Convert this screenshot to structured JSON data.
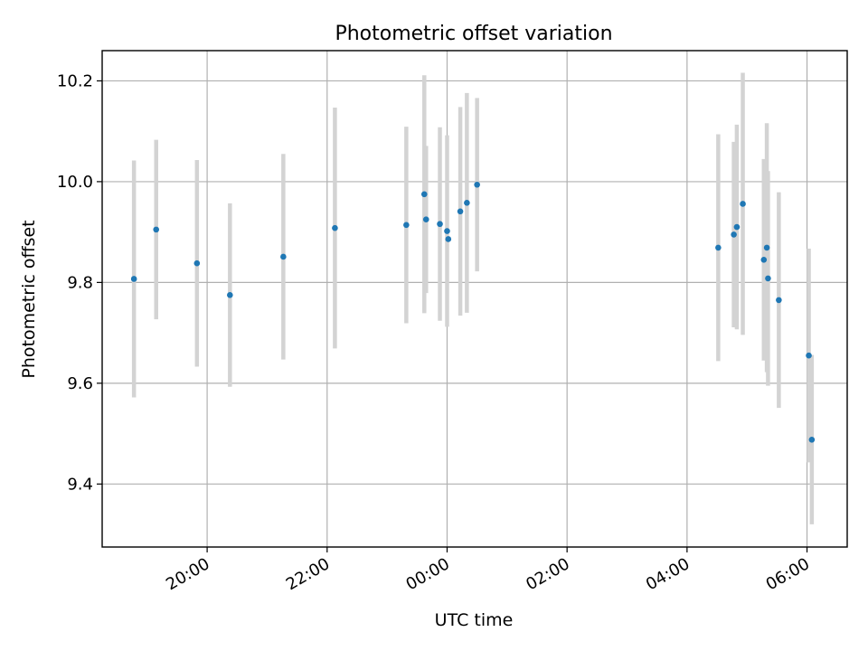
{
  "chart_data": {
    "type": "scatter",
    "title": "Photometric offset variation",
    "xlabel": "UTC time",
    "ylabel": "Photometric offset",
    "x_unit": "hours (UTC, day 1 starts at 00:00)",
    "xlim": [
      18.25,
      30.67
    ],
    "ylim": [
      9.275,
      10.26
    ],
    "x_ticks": [
      {
        "value": 20,
        "label": "20:00"
      },
      {
        "value": 22,
        "label": "22:00"
      },
      {
        "value": 24,
        "label": "00:00"
      },
      {
        "value": 26,
        "label": "02:00"
      },
      {
        "value": 28,
        "label": "04:00"
      },
      {
        "value": 30,
        "label": "06:00"
      }
    ],
    "y_ticks": [
      {
        "value": 9.4,
        "label": "9.4"
      },
      {
        "value": 9.6,
        "label": "9.6"
      },
      {
        "value": 9.8,
        "label": "9.8"
      },
      {
        "value": 10.0,
        "label": "10.0"
      },
      {
        "value": 10.2,
        "label": "10.2"
      }
    ],
    "grid": true,
    "point_color": "#1f77b4",
    "errorbar_color": "#d3d3d3",
    "points": [
      {
        "x": 18.78,
        "y": 9.807,
        "err": 0.235
      },
      {
        "x": 19.15,
        "y": 9.905,
        "err": 0.178
      },
      {
        "x": 19.83,
        "y": 9.838,
        "err": 0.205
      },
      {
        "x": 20.38,
        "y": 9.775,
        "err": 0.182
      },
      {
        "x": 21.27,
        "y": 9.851,
        "err": 0.204
      },
      {
        "x": 22.13,
        "y": 9.908,
        "err": 0.239
      },
      {
        "x": 23.32,
        "y": 9.914,
        "err": 0.195
      },
      {
        "x": 23.62,
        "y": 9.975,
        "err": 0.236
      },
      {
        "x": 23.65,
        "y": 9.925,
        "err": 0.146
      },
      {
        "x": 23.88,
        "y": 9.916,
        "err": 0.192
      },
      {
        "x": 24.0,
        "y": 9.902,
        "err": 0.19
      },
      {
        "x": 24.02,
        "y": 9.886,
        "err": 0.0
      },
      {
        "x": 24.22,
        "y": 9.941,
        "err": 0.207
      },
      {
        "x": 24.33,
        "y": 9.958,
        "err": 0.218
      },
      {
        "x": 24.5,
        "y": 9.994,
        "err": 0.172
      },
      {
        "x": 28.52,
        "y": 9.869,
        "err": 0.225
      },
      {
        "x": 28.78,
        "y": 9.895,
        "err": 0.184
      },
      {
        "x": 28.83,
        "y": 9.91,
        "err": 0.203
      },
      {
        "x": 28.93,
        "y": 9.956,
        "err": 0.26
      },
      {
        "x": 29.28,
        "y": 9.845,
        "err": 0.2
      },
      {
        "x": 29.33,
        "y": 9.869,
        "err": 0.247
      },
      {
        "x": 29.35,
        "y": 9.808,
        "err": 0.213
      },
      {
        "x": 29.53,
        "y": 9.765,
        "err": 0.214
      },
      {
        "x": 30.03,
        "y": 9.655,
        "err": 0.212
      },
      {
        "x": 30.08,
        "y": 9.488,
        "err": 0.168
      }
    ]
  }
}
